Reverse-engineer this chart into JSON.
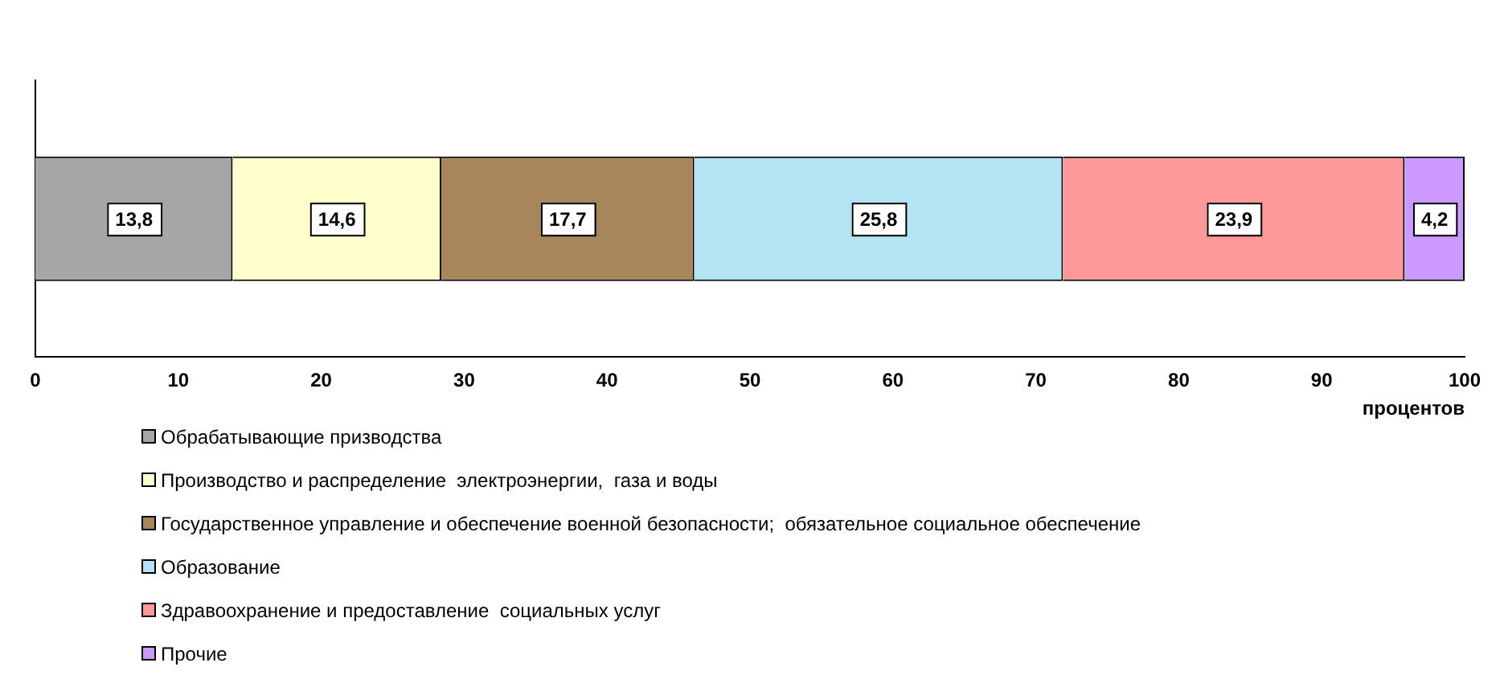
{
  "chart_data": {
    "type": "bar",
    "orientation": "horizontal",
    "stacked": true,
    "categories": [
      null
    ],
    "xlabel": "процентов",
    "xlim": [
      0,
      100
    ],
    "xticks": [
      0,
      10,
      20,
      30,
      40,
      50,
      60,
      70,
      80,
      90,
      100
    ],
    "grid": false,
    "legend": "bottom",
    "series": [
      {
        "name": "Обрабатывающие призводства",
        "color": "#a6a6a6",
        "values": [
          13.8
        ],
        "value_labels": [
          "13,8"
        ]
      },
      {
        "name": "Производство и распределение  электроэнергии,  газа и воды",
        "color": "#ffffcc",
        "values": [
          14.6
        ],
        "value_labels": [
          "14,6"
        ]
      },
      {
        "name": "Государственное управление и обеспечение военной безопасности;  обязательное социальное обеспечение",
        "color": "#a8865c",
        "values": [
          17.7
        ],
        "value_labels": [
          "17,7"
        ]
      },
      {
        "name": "Образование",
        "color": "#b4e4f4",
        "values": [
          25.8
        ],
        "value_labels": [
          "25,8"
        ]
      },
      {
        "name": "Здравоохранение и предоставление  социальных услуг",
        "color": "#ff9999",
        "values": [
          23.9
        ],
        "value_labels": [
          "23,9"
        ]
      },
      {
        "name": "Прочие",
        "color": "#cc99ff",
        "values": [
          4.2
        ],
        "value_labels": [
          "4,2"
        ]
      }
    ]
  }
}
